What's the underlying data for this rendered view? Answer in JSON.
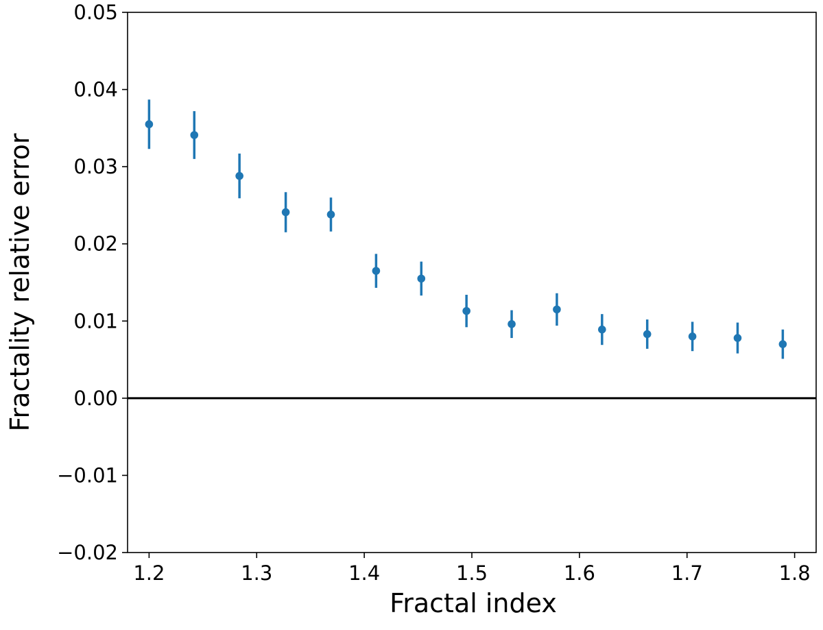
{
  "chart_data": {
    "type": "scatter",
    "title": "",
    "xlabel": "Fractal index",
    "ylabel": "Fractality relative error",
    "xlim": [
      1.18,
      1.82
    ],
    "ylim": [
      -0.02,
      0.05
    ],
    "x_ticks": [
      1.2,
      1.3,
      1.4,
      1.5,
      1.6,
      1.7,
      1.8
    ],
    "x_tick_labels": [
      "1.2",
      "1.3",
      "1.4",
      "1.5",
      "1.6",
      "1.7",
      "1.8"
    ],
    "y_ticks": [
      -0.02,
      -0.01,
      0.0,
      0.01,
      0.02,
      0.03,
      0.04,
      0.05
    ],
    "y_tick_labels": [
      "−0.02",
      "−0.01",
      "0.00",
      "0.01",
      "0.02",
      "0.03",
      "0.04",
      "0.05"
    ],
    "grid": false,
    "reference_line_y": 0.0,
    "series": [
      {
        "color": "#1f77b4",
        "x": [
          1.2,
          1.242,
          1.284,
          1.327,
          1.369,
          1.411,
          1.453,
          1.495,
          1.537,
          1.579,
          1.621,
          1.663,
          1.705,
          1.747,
          1.789
        ],
        "y": [
          0.0355,
          0.0341,
          0.0288,
          0.0241,
          0.0238,
          0.0165,
          0.0155,
          0.0113,
          0.0096,
          0.0115,
          0.0089,
          0.0083,
          0.008,
          0.0078,
          0.007
        ],
        "yerr": [
          0.0032,
          0.0031,
          0.0029,
          0.0026,
          0.0022,
          0.0022,
          0.0022,
          0.0021,
          0.0018,
          0.0021,
          0.002,
          0.0019,
          0.0019,
          0.002,
          0.0019
        ]
      }
    ]
  }
}
